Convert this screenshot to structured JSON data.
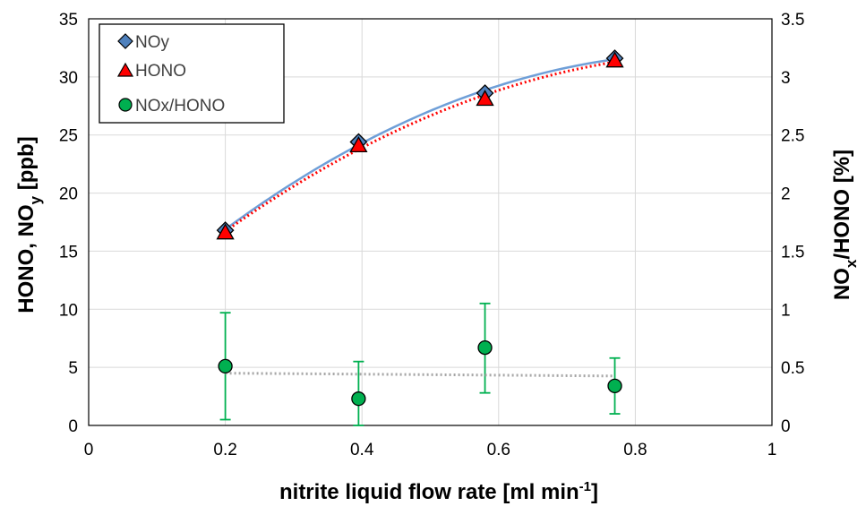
{
  "chart_data": {
    "type": "scatter",
    "xlabel": {
      "main": "nitrite liquid flow rate [ml min",
      "sup": "-1",
      "end": "]"
    },
    "ylabel": {
      "pre": "HONO, NO",
      "sub": "y",
      "post": " [ppb]"
    },
    "y2label": {
      "pre": "NO",
      "sub": "x",
      "post": "/HONO [%]"
    },
    "xlim": [
      0,
      1
    ],
    "ylim": [
      0,
      35
    ],
    "y2lim": [
      0,
      3.5
    ],
    "xticks": [
      "0",
      "0.2",
      "0.4",
      "0.6",
      "0.8",
      "1"
    ],
    "yticks": [
      "0",
      "5",
      "10",
      "15",
      "20",
      "25",
      "30",
      "35"
    ],
    "y2ticks": [
      "0",
      "0.5",
      "1",
      "1.5",
      "2",
      "2.5",
      "3",
      "3.5"
    ],
    "grid": true,
    "legend_position": "top-left",
    "series": [
      {
        "name": "NOy",
        "axis": "left",
        "marker": "diamond",
        "color": "#4f81bd",
        "trendline": "polynomial",
        "trend_color": "#6f9fd8",
        "x": [
          0.2,
          0.395,
          0.58,
          0.77
        ],
        "y": [
          16.8,
          24.4,
          28.6,
          31.6
        ]
      },
      {
        "name": "HONO",
        "axis": "left",
        "marker": "triangle",
        "color": "#ff0000",
        "trendline": "polynomial-dotted",
        "trend_color": "#ff0000",
        "x": [
          0.2,
          0.395,
          0.58,
          0.77
        ],
        "y": [
          16.6,
          24.1,
          28.1,
          31.4
        ]
      },
      {
        "name": "NOx/HONO",
        "axis": "right",
        "marker": "circle",
        "color": "#00b050",
        "trendline": "linear-dotted",
        "trend_color": "#a6a6a6",
        "x": [
          0.2,
          0.395,
          0.58,
          0.77
        ],
        "y": [
          0.51,
          0.23,
          0.67,
          0.34
        ],
        "err_low": [
          0.05,
          0.0,
          0.28,
          0.1
        ],
        "err_high": [
          0.97,
          0.55,
          1.05,
          0.58
        ]
      }
    ]
  }
}
